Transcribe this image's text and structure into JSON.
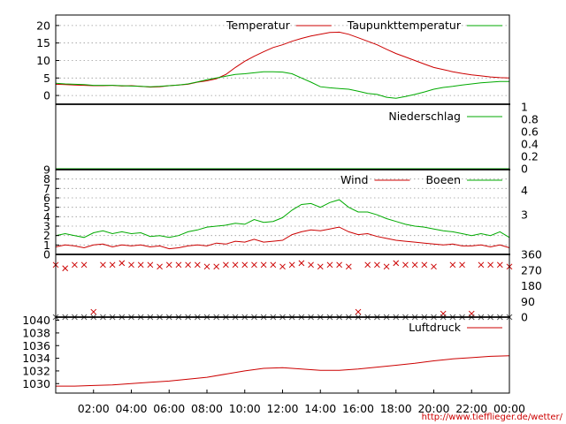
{
  "source_url": "http://www.tiefflieger.de/wetter/",
  "colors": {
    "red": "#cc0000",
    "green": "#00aa00",
    "grid": "#9a9a9a",
    "axis": "#000000"
  },
  "chart_data": [
    {
      "id": "temperature",
      "type": "line",
      "ylim": [
        -2.5,
        23
      ],
      "yticks": [
        "0",
        "5",
        "10",
        "15",
        "20"
      ],
      "ytick_values": [
        0,
        5,
        10,
        15,
        20
      ],
      "grid": "horizontal-dotted",
      "legend_placement": "top-right",
      "x": [
        0,
        0.5,
        1,
        1.5,
        2,
        2.5,
        3,
        3.5,
        4,
        4.5,
        5,
        5.5,
        6,
        6.5,
        7,
        7.5,
        8,
        8.5,
        9,
        9.5,
        10,
        10.5,
        11,
        11.5,
        12,
        12.5,
        13,
        13.5,
        14,
        14.5,
        15,
        15.5,
        16,
        16.5,
        17,
        17.5,
        18,
        18.5,
        19,
        19.5,
        20,
        20.5,
        21,
        21.5,
        22,
        22.5,
        23,
        23.5,
        24
      ],
      "series": [
        {
          "name": "Temperatur",
          "color": "#cc0000",
          "values": [
            3.2,
            3.1,
            3.0,
            2.9,
            2.8,
            2.8,
            2.9,
            2.7,
            2.8,
            2.6,
            2.4,
            2.5,
            2.8,
            3.0,
            3.2,
            3.8,
            4.2,
            4.8,
            6.0,
            8.0,
            9.8,
            11.2,
            12.5,
            13.7,
            14.5,
            15.5,
            16.3,
            17.0,
            17.5,
            18.0,
            18.1,
            17.5,
            16.5,
            15.5,
            14.5,
            13.2,
            12.0,
            11.0,
            10.0,
            9.0,
            8.0,
            7.4,
            6.8,
            6.3,
            5.9,
            5.6,
            5.3,
            5.1,
            5.0
          ]
        },
        {
          "name": "Taupunkttemperatur",
          "color": "#00aa00",
          "values": [
            3.5,
            3.3,
            3.2,
            3.1,
            2.9,
            2.9,
            2.9,
            2.8,
            2.7,
            2.6,
            2.5,
            2.6,
            2.8,
            3.0,
            3.3,
            3.9,
            4.5,
            5.0,
            5.5,
            6.0,
            6.2,
            6.5,
            6.8,
            6.8,
            6.7,
            6.2,
            5.0,
            3.8,
            2.5,
            2.2,
            2.0,
            1.8,
            1.2,
            0.6,
            0.3,
            -0.5,
            -0.8,
            -0.3,
            0.3,
            1.0,
            1.8,
            2.3,
            2.6,
            3.0,
            3.3,
            3.6,
            3.8,
            4.0,
            4.0
          ]
        }
      ]
    },
    {
      "id": "precipitation",
      "type": "line",
      "ylim": [
        0,
        1
      ],
      "yticks": [
        "0",
        "0.2",
        "0.4",
        "0.6",
        "0.8",
        "1"
      ],
      "ytick_values": [
        0,
        0.2,
        0.4,
        0.6,
        0.8,
        1
      ],
      "legend_placement": "top-right",
      "series": [
        {
          "name": "Niederschlag",
          "color": "#00aa00",
          "values": [
            0,
            0
          ]
        }
      ],
      "x": [
        0,
        24
      ]
    },
    {
      "id": "wind",
      "type": "line",
      "ylim": [
        0,
        9
      ],
      "yticks": [
        "0",
        "1",
        "2",
        "3",
        "4",
        "5",
        "6",
        "7",
        "8",
        "9"
      ],
      "ytick_values": [
        0,
        1,
        2,
        3,
        4,
        5,
        6,
        7,
        8,
        9
      ],
      "right_ticks": [
        "3",
        "4"
      ],
      "right_tick_values": [
        4.2,
        6.8
      ],
      "grid": "horizontal-dotted",
      "legend_placement": "top-right",
      "x": [
        0,
        0.5,
        1,
        1.5,
        2,
        2.5,
        3,
        3.5,
        4,
        4.5,
        5,
        5.5,
        6,
        6.5,
        7,
        7.5,
        8,
        8.5,
        9,
        9.5,
        10,
        10.5,
        11,
        11.5,
        12,
        12.5,
        13,
        13.5,
        14,
        14.5,
        15,
        15.5,
        16,
        16.5,
        17,
        17.5,
        18,
        18.5,
        19,
        19.5,
        20,
        20.5,
        21,
        21.5,
        22,
        22.5,
        23,
        23.5,
        24
      ],
      "series": [
        {
          "name": "Wind",
          "color": "#cc0000",
          "values": [
            0.8,
            1.0,
            0.9,
            0.7,
            1.0,
            1.1,
            0.8,
            1.0,
            0.9,
            1.0,
            0.8,
            0.9,
            0.6,
            0.7,
            0.9,
            1.0,
            0.9,
            1.2,
            1.1,
            1.4,
            1.3,
            1.6,
            1.3,
            1.4,
            1.5,
            2.1,
            2.4,
            2.6,
            2.5,
            2.7,
            2.9,
            2.4,
            2.1,
            2.2,
            1.9,
            1.7,
            1.5,
            1.4,
            1.3,
            1.2,
            1.1,
            1.0,
            1.1,
            0.9,
            0.9,
            1.0,
            0.8,
            1.0,
            0.7
          ]
        },
        {
          "name": "Boeen",
          "color": "#00aa00",
          "values": [
            2.0,
            2.2,
            2.0,
            1.8,
            2.3,
            2.5,
            2.2,
            2.4,
            2.2,
            2.3,
            1.9,
            2.0,
            1.8,
            2.0,
            2.4,
            2.6,
            2.9,
            3.0,
            3.1,
            3.3,
            3.2,
            3.7,
            3.4,
            3.5,
            3.9,
            4.7,
            5.3,
            5.4,
            5.0,
            5.5,
            5.8,
            5.0,
            4.5,
            4.5,
            4.2,
            3.8,
            3.5,
            3.2,
            3.0,
            2.9,
            2.7,
            2.5,
            2.4,
            2.2,
            2.0,
            2.2,
            2.0,
            2.4,
            1.8
          ]
        }
      ]
    },
    {
      "id": "wind-direction",
      "type": "scatter",
      "ylim": [
        0,
        360
      ],
      "right_ticks": [
        "0",
        "90",
        "180",
        "270",
        "360"
      ],
      "right_tick_values": [
        0,
        90,
        180,
        270,
        360
      ],
      "marker": "x",
      "x": [
        0,
        0.5,
        1,
        1.5,
        2,
        2.5,
        3,
        3.5,
        4,
        4.5,
        5,
        5.5,
        6,
        6.5,
        7,
        7.5,
        8,
        8.5,
        9,
        9.5,
        10,
        10.5,
        11,
        11.5,
        12,
        12.5,
        13,
        13.5,
        14,
        14.5,
        15,
        15.5,
        16,
        16.5,
        17,
        17.5,
        18,
        18.5,
        19,
        19.5,
        20,
        20.5,
        21,
        21.5,
        22,
        22.5,
        23,
        23.5,
        24
      ],
      "series": [
        {
          "name": "",
          "color": "#cc0000",
          "values": [
            300,
            280,
            300,
            300,
            30,
            300,
            300,
            310,
            300,
            300,
            300,
            290,
            300,
            300,
            300,
            300,
            290,
            290,
            300,
            300,
            300,
            300,
            300,
            300,
            290,
            300,
            310,
            300,
            290,
            300,
            300,
            290,
            30,
            300,
            300,
            290,
            310,
            300,
            300,
            300,
            290,
            20,
            300,
            300,
            20,
            300,
            300,
            300,
            290
          ]
        },
        {
          "name": "",
          "color": "#555555",
          "values": [
            0,
            0,
            0,
            0,
            0,
            0,
            0,
            0,
            0,
            0,
            0,
            0,
            0,
            0,
            0,
            0,
            0,
            0,
            0,
            0,
            0,
            0,
            0,
            0,
            0,
            0,
            0,
            0,
            0,
            0,
            0,
            0,
            0,
            0,
            0,
            0,
            0,
            0,
            0,
            0,
            0,
            0,
            0,
            0,
            0,
            0,
            0,
            0,
            0
          ]
        }
      ]
    },
    {
      "id": "pressure",
      "type": "line",
      "ylim": [
        1028.5,
        1040.5
      ],
      "yticks": [
        "1030",
        "1032",
        "1034",
        "1036",
        "1038",
        "1040"
      ],
      "ytick_values": [
        1030,
        1032,
        1034,
        1036,
        1038,
        1040
      ],
      "legend_placement": "top-right",
      "x": [
        0,
        1,
        2,
        3,
        4,
        5,
        6,
        7,
        8,
        9,
        10,
        11,
        12,
        13,
        14,
        15,
        16,
        17,
        18,
        19,
        20,
        21,
        22,
        23,
        24
      ],
      "series": [
        {
          "name": "Luftdruck",
          "color": "#cc0000",
          "values": [
            1029.6,
            1029.6,
            1029.7,
            1029.8,
            1030.0,
            1030.2,
            1030.4,
            1030.7,
            1031.0,
            1031.5,
            1032.0,
            1032.4,
            1032.5,
            1032.3,
            1032.1,
            1032.1,
            1032.3,
            1032.6,
            1032.9,
            1033.2,
            1033.6,
            1033.9,
            1034.1,
            1034.3,
            1034.4
          ]
        }
      ]
    }
  ],
  "x_axis": {
    "labels": [
      "02:00",
      "04:00",
      "06:00",
      "08:00",
      "10:00",
      "12:00",
      "14:00",
      "16:00",
      "18:00",
      "20:00",
      "22:00",
      "00:00"
    ],
    "values": [
      2,
      4,
      6,
      8,
      10,
      12,
      14,
      16,
      18,
      20,
      22,
      24
    ],
    "range": [
      0,
      24
    ]
  }
}
